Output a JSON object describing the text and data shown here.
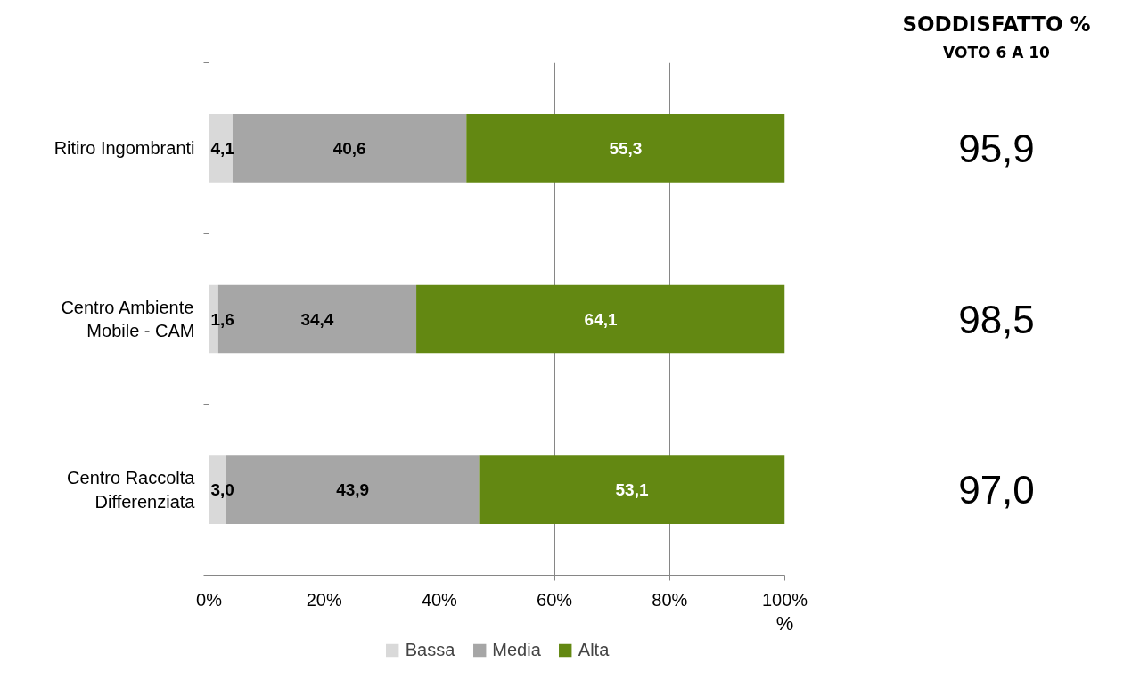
{
  "chart_data": [
    {
      "type": "bar",
      "orientation": "horizontal",
      "stacked": true,
      "xlabel": "%",
      "categories": [
        "Ritiro Ingombranti",
        "Centro Ambiente Mobile - CAM",
        "Centro Raccolta Differenziata"
      ],
      "series": [
        {
          "name": "Bassa",
          "color": "#d9d9d9",
          "values": [
            4.1,
            1.6,
            3.0
          ],
          "value_labels": [
            "4,1",
            "1,6",
            "3,0"
          ]
        },
        {
          "name": "Media",
          "color": "#a6a6a6",
          "values": [
            40.6,
            34.4,
            43.9
          ],
          "value_labels": [
            "40,6",
            "34,4",
            "43,9"
          ]
        },
        {
          "name": "Alta",
          "color": "#638812",
          "values": [
            55.3,
            64.1,
            53.1
          ],
          "value_labels": [
            "55,3",
            "64,1",
            "53,1"
          ]
        }
      ],
      "xlim": [
        0,
        100
      ],
      "xticks": [
        {
          "value": 0,
          "label": "0%"
        },
        {
          "value": 20,
          "label": "20%"
        },
        {
          "value": 40,
          "label": "40%"
        },
        {
          "value": 60,
          "label": "60%"
        },
        {
          "value": 80,
          "label": "80%"
        },
        {
          "value": 100,
          "label": "100%"
        }
      ],
      "grid": "x",
      "legend": "bottom"
    },
    {
      "type": "other",
      "title": "SODDISFATTO %",
      "subtitle": "VOTO 6 A 10",
      "annotations": [
        "95,9",
        "98,5",
        "97,0"
      ]
    }
  ]
}
